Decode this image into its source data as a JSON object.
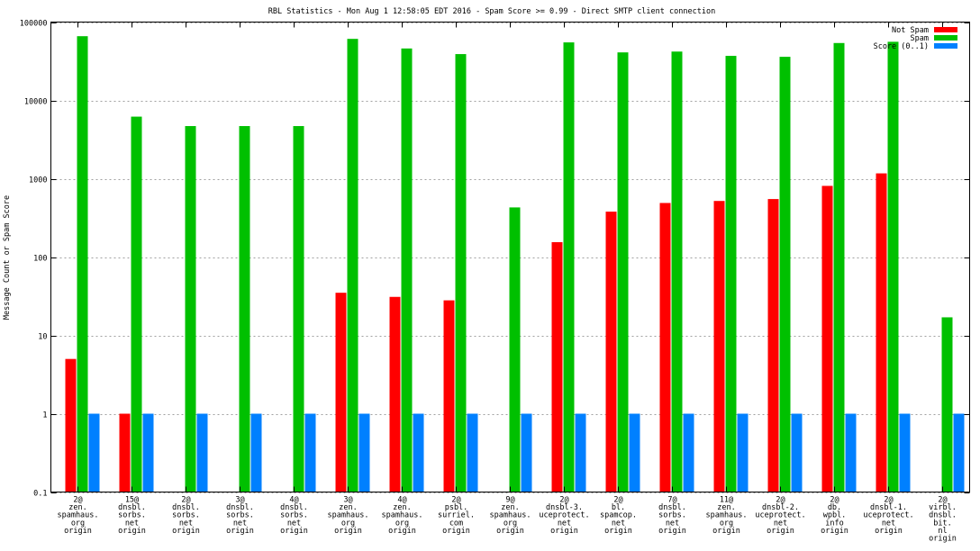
{
  "chart_data": {
    "type": "bar",
    "title": "RBL Statistics - Mon Aug  1 12:58:05 EDT 2016 - Spam Score >= 0.99 - Direct SMTP client connection",
    "xlabel": "",
    "ylabel": "Message Count or Spam Score",
    "yscale": "log",
    "ylim": [
      0.1,
      100000
    ],
    "yticks": [
      "0.1",
      "1",
      "10",
      "100",
      "1000",
      "10000",
      "100000"
    ],
    "ytick_values": [
      0.1,
      1,
      10,
      100,
      1000,
      10000,
      100000
    ],
    "grid": true,
    "legend_position": "top-right",
    "categories": [
      [
        "2@",
        "zen.",
        "spamhaus.",
        "org",
        "origin"
      ],
      [
        "15@",
        "dnsbl.",
        "sorbs.",
        "net",
        "origin"
      ],
      [
        "2@",
        "dnsbl.",
        "sorbs.",
        "net",
        "origin"
      ],
      [
        "3@",
        "dnsbl.",
        "sorbs.",
        "net",
        "origin"
      ],
      [
        "4@",
        "dnsbl.",
        "sorbs.",
        "net",
        "origin"
      ],
      [
        "3@",
        "zen.",
        "spamhaus.",
        "org",
        "origin"
      ],
      [
        "4@",
        "zen.",
        "spamhaus.",
        "org",
        "origin"
      ],
      [
        "2@",
        "psbl.",
        "surriel.",
        "com",
        "origin"
      ],
      [
        "9@",
        "zen.",
        "spamhaus.",
        "org",
        "origin"
      ],
      [
        "2@",
        "dnsbl-3.",
        "uceprotect.",
        "net",
        "origin"
      ],
      [
        "2@",
        "bl.",
        "spamcop.",
        "net",
        "origin"
      ],
      [
        "7@",
        "dnsbl.",
        "sorbs.",
        "net",
        "origin"
      ],
      [
        "11@",
        "zen.",
        "spamhaus.",
        "org",
        "origin"
      ],
      [
        "2@",
        "dnsbl-2.",
        "uceprotect.",
        "net",
        "origin"
      ],
      [
        "2@",
        "db.",
        "wpbl.",
        "info",
        "origin"
      ],
      [
        "2@",
        "dnsbl-1.",
        "uceprotect.",
        "net",
        "origin"
      ],
      [
        "2@",
        "virbl.",
        "dnsbl.",
        "bit.",
        "nl",
        "origin"
      ]
    ],
    "series": [
      {
        "name": "Not Spam",
        "color": "#ff0000",
        "values": [
          5,
          1,
          null,
          null,
          null,
          35,
          31,
          28,
          null,
          155,
          380,
          490,
          520,
          550,
          810,
          1170,
          null
        ]
      },
      {
        "name": "Spam",
        "color": "#00c000",
        "values": [
          66000,
          6200,
          4700,
          4700,
          4700,
          61000,
          46000,
          39000,
          430,
          55000,
          41000,
          42000,
          37000,
          36000,
          54000,
          56000,
          17
        ]
      },
      {
        "name": "Score (0..1)",
        "color": "#0080ff",
        "values": [
          1,
          1,
          1,
          1,
          1,
          1,
          1,
          1,
          1,
          1,
          1,
          1,
          1,
          1,
          1,
          1,
          1
        ]
      }
    ]
  }
}
